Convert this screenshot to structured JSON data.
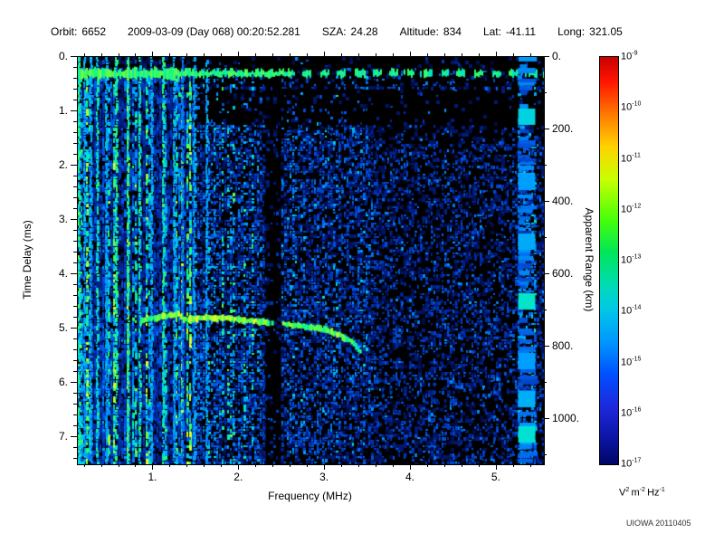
{
  "header": {
    "orbit_label": "Orbit:",
    "orbit_value": "6652",
    "datetime": "2009-03-09 (Day 068) 00:20:52.281",
    "sza_label": "SZA:",
    "sza_value": "24.28",
    "altitude_label": "Altitude:",
    "altitude_value": "834",
    "lat_label": "Lat:",
    "lat_value": "-41.11",
    "long_label": "Long:",
    "long_value": "321.05"
  },
  "watermark": "UIOWA 20110405",
  "chart_data": {
    "type": "heatmap",
    "description": "Radar sounder ionogram: received spectral density vs sounding frequency and time delay",
    "xlabel": "Frequency (MHz)",
    "ylabel": "Time Delay (ms)",
    "y2label": "Apparent Range (km)",
    "x_range_mhz": [
      0.12,
      5.55
    ],
    "y_range_ms": [
      0,
      7.5
    ],
    "x_ticks": {
      "values": [
        1,
        2,
        3,
        4,
        5
      ],
      "labels": [
        "1.",
        "2.",
        "3.",
        "4.",
        "5."
      ],
      "minor_step": 0.2
    },
    "y_ticks": {
      "values": [
        0,
        1,
        2,
        3,
        4,
        5,
        6,
        7
      ],
      "labels": [
        "0.",
        "1.",
        "2.",
        "3.",
        "4.",
        "5.",
        "6.",
        "7."
      ],
      "minor_step": 0.2
    },
    "y2_ticks": {
      "values_km": [
        0,
        200,
        400,
        600,
        800,
        1000
      ],
      "labels": [
        "0.",
        "200.",
        "400.",
        "600.",
        "800.",
        "1000."
      ],
      "km_per_ms": 150,
      "minor_step_km": 100
    },
    "colorbar": {
      "scale": "log",
      "exponents": [
        -9,
        -10,
        -11,
        -12,
        -13,
        -14,
        -15,
        -16,
        -17
      ],
      "units_parts": [
        {
          "base": "V",
          "exp": "2"
        },
        {
          "base": "m",
          "exp": "-2"
        },
        {
          "base": "Hz",
          "exp": "-1"
        }
      ],
      "gradient_stops": [
        "#c80000 0%",
        "#ff1400 6%",
        "#ff7800 14%",
        "#ffd200 22%",
        "#c8ff00 30%",
        "#46ff0a 40%",
        "#00e65a 48%",
        "#00dcb4 56%",
        "#00c8e6 62%",
        "#0096ff 70%",
        "#0050ff 78%",
        "#1e28dc 86%",
        "#0a14a0 94%",
        "#000664 100%"
      ]
    },
    "colormap_stops": [
      [
        0.0,
        2,
        2,
        40
      ],
      [
        0.25,
        0,
        40,
        160
      ],
      [
        0.45,
        0,
        90,
        230
      ],
      [
        0.6,
        0,
        160,
        255
      ],
      [
        0.72,
        0,
        225,
        215
      ],
      [
        0.82,
        30,
        250,
        120
      ],
      [
        0.92,
        120,
        255,
        60
      ],
      [
        1.0,
        220,
        255,
        40
      ]
    ],
    "features": {
      "surface_band": {
        "delay_ms": 0.3,
        "thickness_px": 10,
        "solid_until_mhz": 2.6
      },
      "harmonic_lines_mhz": [
        0.14,
        0.2,
        0.27,
        0.35,
        0.45,
        0.57,
        0.7,
        0.84,
        0.98,
        1.12,
        1.24,
        1.34,
        1.47,
        1.62
      ],
      "echo_trace_mhz_ms": [
        [
          0.85,
          4.85
        ],
        [
          1.05,
          4.8
        ],
        [
          1.28,
          4.72
        ],
        [
          1.34,
          4.84
        ],
        [
          1.6,
          4.8
        ],
        [
          1.9,
          4.82
        ],
        [
          2.2,
          4.87
        ],
        [
          2.5,
          4.92
        ],
        [
          2.8,
          4.97
        ],
        [
          3.0,
          5.03
        ],
        [
          3.15,
          5.12
        ],
        [
          3.3,
          5.25
        ],
        [
          3.42,
          5.45
        ]
      ],
      "quiet_band_ms": [
        0.55,
        1.25
      ],
      "gap_mhz": [
        2.28,
        2.48
      ],
      "right_band_mhz": [
        5.24,
        5.46
      ],
      "right_band_blob_delays_ms": [
        1.1,
        2.3,
        3.4,
        4.5,
        5.6,
        6.3,
        6.95
      ],
      "noise_seed": 20110405
    }
  }
}
